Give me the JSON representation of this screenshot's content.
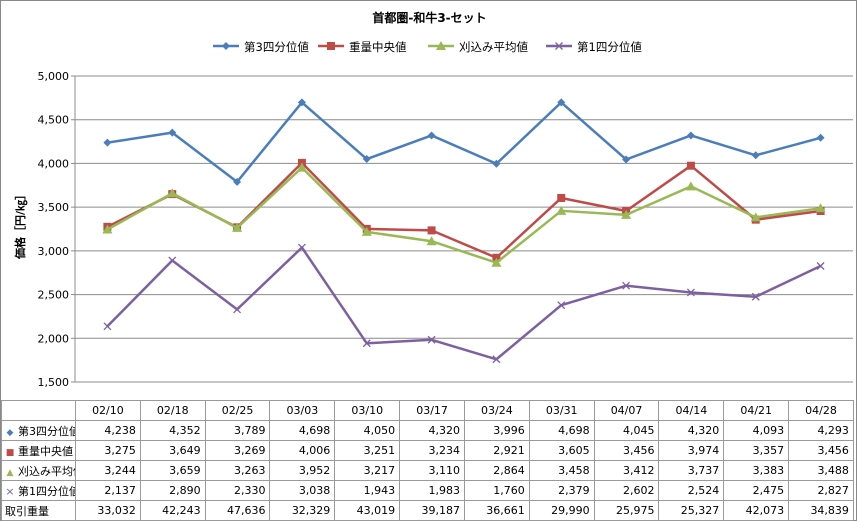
{
  "chart_data": {
    "type": "line",
    "title": "首都圏-和牛3-セット",
    "ylabel": "価格［円/㎏］",
    "ylim": [
      1500,
      5000
    ],
    "yticks": [
      "1,500",
      "2,000",
      "2,500",
      "3,000",
      "3,500",
      "4,000",
      "4,500",
      "5,000"
    ],
    "grid": true,
    "legend": "top",
    "categories": [
      "02/10",
      "02/18",
      "02/25",
      "03/03",
      "03/10",
      "03/17",
      "03/24",
      "03/31",
      "04/07",
      "04/14",
      "04/21",
      "04/28"
    ],
    "series": [
      {
        "name": "第3四分位値",
        "color": "#4a7ebb",
        "marker": "diamond",
        "values": [
          4238,
          4352,
          3789,
          4698,
          4050,
          4320,
          3996,
          4698,
          4045,
          4320,
          4093,
          4293
        ],
        "labels": [
          "4,238",
          "4,352",
          "3,789",
          "4,698",
          "4,050",
          "4,320",
          "3,996",
          "4,698",
          "4,045",
          "4,320",
          "4,093",
          "4,293"
        ]
      },
      {
        "name": "重量中央値",
        "color": "#be4b48",
        "marker": "square",
        "values": [
          3275,
          3649,
          3269,
          4006,
          3251,
          3234,
          2921,
          3605,
          3456,
          3974,
          3357,
          3456
        ],
        "labels": [
          "3,275",
          "3,649",
          "3,269",
          "4,006",
          "3,251",
          "3,234",
          "2,921",
          "3,605",
          "3,456",
          "3,974",
          "3,357",
          "3,456"
        ]
      },
      {
        "name": "刈込み平均値",
        "color": "#98b954",
        "marker": "triangle",
        "values": [
          3244,
          3659,
          3263,
          3952,
          3217,
          3110,
          2864,
          3458,
          3412,
          3737,
          3383,
          3488
        ],
        "labels": [
          "3,244",
          "3,659",
          "3,263",
          "3,952",
          "3,217",
          "3,110",
          "2,864",
          "3,458",
          "3,412",
          "3,737",
          "3,383",
          "3,488"
        ]
      },
      {
        "name": "第1四分位値",
        "color": "#7d60a0",
        "marker": "x",
        "values": [
          2137,
          2890,
          2330,
          3038,
          1943,
          1983,
          1760,
          2379,
          2602,
          2524,
          2475,
          2827
        ],
        "labels": [
          "2,137",
          "2,890",
          "2,330",
          "3,038",
          "1,943",
          "1,983",
          "1,760",
          "2,379",
          "2,602",
          "2,524",
          "2,475",
          "2,827"
        ]
      }
    ],
    "extra_row": {
      "name": "取引重量",
      "values": [
        33032,
        42243,
        47636,
        32329,
        43019,
        39187,
        36661,
        29990,
        25975,
        25327,
        42073,
        34839
      ],
      "labels": [
        "33,032",
        "42,243",
        "47,636",
        "32,329",
        "43,019",
        "39,187",
        "36,661",
        "29,990",
        "25,975",
        "25,327",
        "42,073",
        "34,839"
      ]
    }
  }
}
